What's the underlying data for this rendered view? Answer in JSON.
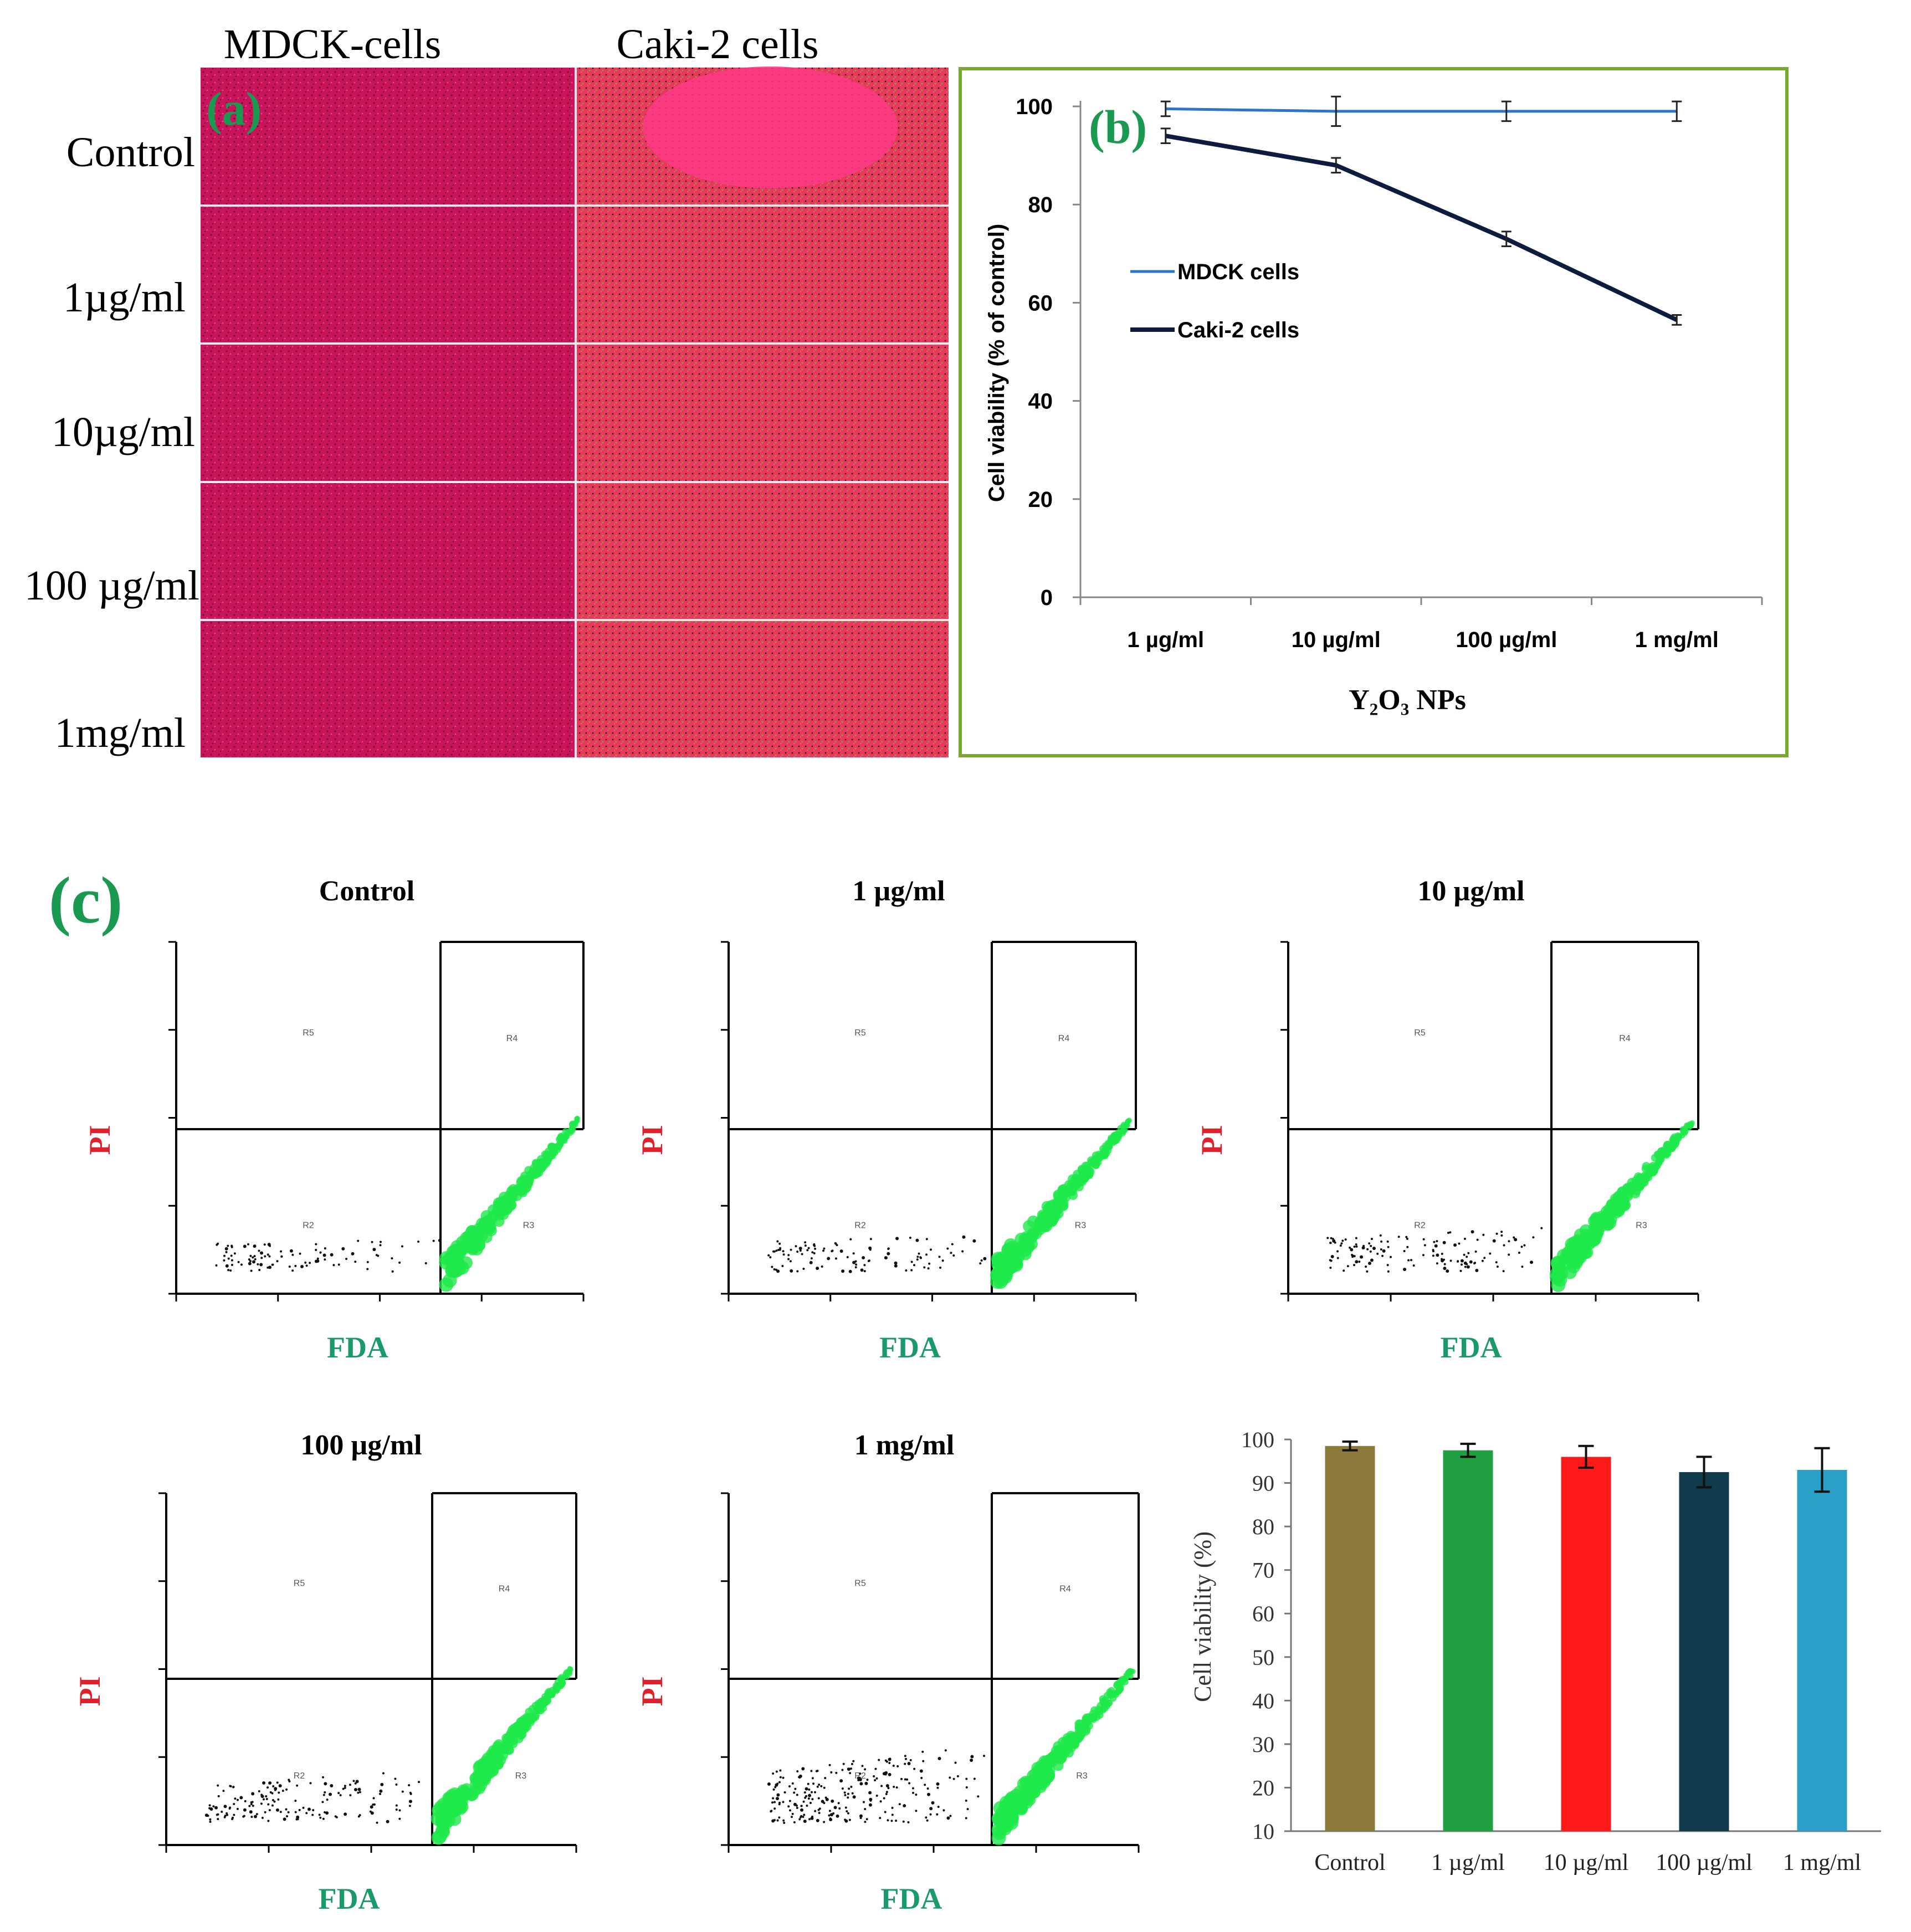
{
  "panel_a": {
    "label": "(a)",
    "columns": [
      "MDCK-cells",
      "Caki-2 cells"
    ],
    "rows": [
      "Control",
      "1µg/ml",
      "10µg/ml",
      "100 µg/ml",
      "1mg/ml"
    ],
    "colors": {
      "mdck": "#c8145a",
      "caki": "#e83a60",
      "grain": "#8a9a3a"
    }
  },
  "panel_b": {
    "label": "(b)",
    "chart_data": {
      "type": "line",
      "categories": [
        "1 µg/ml",
        "10 µg/ml",
        "100 µg/ml",
        "1 mg/ml"
      ],
      "series": [
        {
          "name": "MDCK cells",
          "values": [
            99.5,
            99,
            99,
            99
          ],
          "errors": [
            1.5,
            3,
            2,
            2
          ],
          "color": "#2e74c8"
        },
        {
          "name": "Caki-2 cells",
          "values": [
            94,
            88,
            73,
            56.5
          ],
          "errors": [
            1.5,
            1.5,
            1.5,
            1
          ],
          "color": "#0d1b3e"
        }
      ],
      "xlabel": "Y₂O₃ NPs",
      "ylabel": "Cell viability (% of control)",
      "ylim": [
        0,
        100
      ],
      "yticks": [
        0,
        20,
        40,
        60,
        80,
        100
      ],
      "legend": "middle-left",
      "frame_color": "#76a832"
    }
  },
  "panel_c": {
    "label": "(c)",
    "flow_plots": {
      "x_axis": "FDA",
      "y_axis": "PI",
      "quadrants": [
        "R5",
        "R4",
        "R2",
        "R3"
      ],
      "titles": [
        "Control",
        "1 µg/ml",
        "10 µg/ml",
        "100 µg/ml",
        "1 mg/ml"
      ]
    },
    "chart_data": {
      "type": "bar",
      "categories": [
        "Control",
        "1 µg/ml",
        "10 µg/ml",
        "100 µg/ml",
        "1 mg/ml"
      ],
      "values": [
        98.5,
        97.5,
        96,
        92.5,
        93
      ],
      "errors": [
        1,
        1.5,
        2.5,
        3.5,
        5
      ],
      "colors": [
        "#8b7a3a",
        "#20a040",
        "#ff1a1a",
        "#0f3b4c",
        "#2aa0c8"
      ],
      "ylabel": "Cell viability (%)",
      "ylim": [
        10,
        100
      ],
      "yticks": [
        10,
        20,
        30,
        40,
        50,
        60,
        70,
        80,
        90,
        100
      ]
    }
  }
}
